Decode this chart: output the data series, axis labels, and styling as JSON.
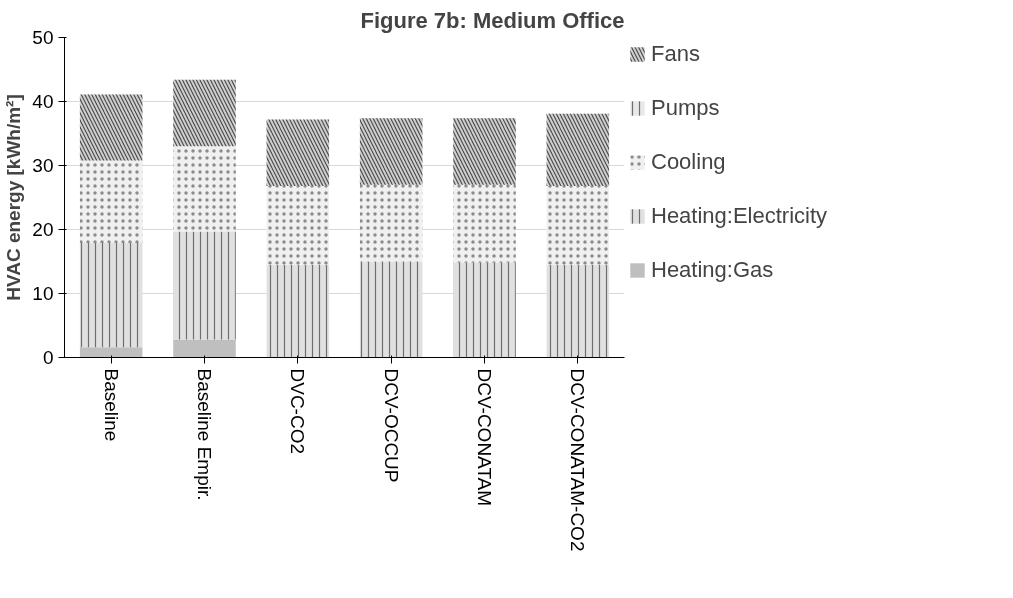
{
  "chart_data": {
    "type": "bar",
    "stacked": true,
    "title": "Figure 7b: Medium Office",
    "ylabel": "HVAC energy [kWh/m²]",
    "categories": [
      "Baseline",
      "Baseline Empir.",
      "DVC-CO2",
      "DCV-OCCUP",
      "DCV-CONATAM",
      "DCV-CONATAM-CO2"
    ],
    "series": [
      {
        "name": "Heating:Gas",
        "color": "#bfbfbf",
        "values": [
          1.6,
          2.8,
          0,
          0,
          0,
          0
        ]
      },
      {
        "name": "Heating:Electricity",
        "color": "#e0e0e0",
        "values": [
          16.3,
          16.9,
          14.5,
          15.0,
          14.8,
          14.5
        ]
      },
      {
        "name": "Cooling",
        "color": "#f0f0f0",
        "values": [
          12.9,
          13.3,
          12.3,
          12.0,
          12.2,
          12.3
        ]
      },
      {
        "name": "Pumps",
        "color": "#e8e8e8",
        "values": [
          0,
          0,
          0,
          0,
          0,
          0
        ]
      },
      {
        "name": "Fans",
        "color": "#d0d0d0",
        "values": [
          10.3,
          10.4,
          10.4,
          10.4,
          10.4,
          11.3
        ]
      }
    ],
    "ylim": [
      0,
      50
    ],
    "yticks": [
      0,
      10,
      20,
      30,
      40,
      50
    ],
    "grid": "y",
    "legend": "right"
  }
}
